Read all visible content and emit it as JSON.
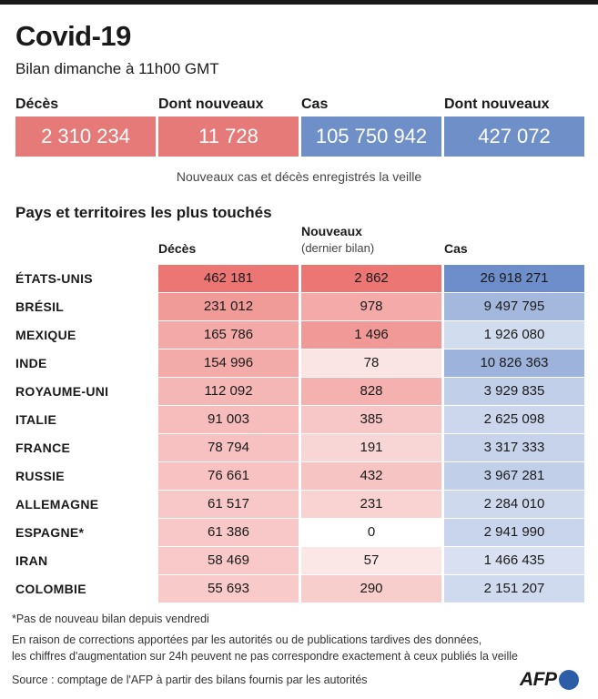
{
  "header": {
    "title": "Covid-19",
    "subtitle": "Bilan dimanche à 11h00 GMT"
  },
  "stats": [
    {
      "label": "Décès",
      "value": "2 310 234",
      "color": "#e67a78"
    },
    {
      "label": "Dont nouveaux",
      "value": "11 728",
      "color": "#e67a78"
    },
    {
      "label": "Cas",
      "value": "105 750 942",
      "color": "#6f8fc9"
    },
    {
      "label": "Dont nouveaux",
      "value": "427 072",
      "color": "#6f8fc9"
    }
  ],
  "stats_note": "Nouveaux cas et décès enregistrés la veille",
  "table_title": "Pays et territoires les plus touchés",
  "columns": {
    "deaths": "Décès",
    "new": "Nouveaux",
    "new_sub": "(dernier bilan)",
    "cases": "Cas"
  },
  "chart_data": {
    "type": "table",
    "title": "Pays et territoires les plus touchés",
    "columns": [
      "Décès",
      "Nouveaux (dernier bilan)",
      "Cas"
    ],
    "colors": {
      "red": "#ec7674",
      "blue": "#6d8dcb"
    },
    "rows": [
      {
        "country": "ÉTATS-UNIS",
        "deaths": 462181,
        "deaths_label": "462 181",
        "new": 2862,
        "new_label": "2 862",
        "cases": 26918271,
        "cases_label": "26 918 271"
      },
      {
        "country": "BRÉSIL",
        "deaths": 231012,
        "deaths_label": "231 012",
        "new": 978,
        "new_label": "978",
        "cases": 9497795,
        "cases_label": "9 497 795"
      },
      {
        "country": "MEXIQUE",
        "deaths": 165786,
        "deaths_label": "165 786",
        "new": 1496,
        "new_label": "1 496",
        "cases": 1926080,
        "cases_label": "1 926 080"
      },
      {
        "country": "INDE",
        "deaths": 154996,
        "deaths_label": "154 996",
        "new": 78,
        "new_label": "78",
        "cases": 10826363,
        "cases_label": "10 826 363"
      },
      {
        "country": "ROYAUME-UNI",
        "deaths": 112092,
        "deaths_label": "112 092",
        "new": 828,
        "new_label": "828",
        "cases": 3929835,
        "cases_label": "3 929 835"
      },
      {
        "country": "ITALIE",
        "deaths": 91003,
        "deaths_label": "91 003",
        "new": 385,
        "new_label": "385",
        "cases": 2625098,
        "cases_label": "2 625 098"
      },
      {
        "country": "FRANCE",
        "deaths": 78794,
        "deaths_label": "78 794",
        "new": 191,
        "new_label": "191",
        "cases": 3317333,
        "cases_label": "3 317 333"
      },
      {
        "country": "RUSSIE",
        "deaths": 76661,
        "deaths_label": "76 661",
        "new": 432,
        "new_label": "432",
        "cases": 3967281,
        "cases_label": "3 967 281"
      },
      {
        "country": "ALLEMAGNE",
        "deaths": 61517,
        "deaths_label": "61 517",
        "new": 231,
        "new_label": "231",
        "cases": 2284010,
        "cases_label": "2 284 010"
      },
      {
        "country": "ESPAGNE*",
        "deaths": 61386,
        "deaths_label": "61 386",
        "new": 0,
        "new_label": "0",
        "cases": 2941990,
        "cases_label": "2 941 990"
      },
      {
        "country": "IRAN",
        "deaths": 58469,
        "deaths_label": "58 469",
        "new": 57,
        "new_label": "57",
        "cases": 1466435,
        "cases_label": "1 466 435"
      },
      {
        "country": "COLOMBIE",
        "deaths": 55693,
        "deaths_label": "55 693",
        "new": 290,
        "new_label": "290",
        "cases": 2151207,
        "cases_label": "2 151 207"
      }
    ]
  },
  "footnotes": {
    "asterisk": "*Pas de nouveau bilan depuis vendredi",
    "corrections_line1": "En raison de corrections apportées par les autorités ou de publications tardives des données,",
    "corrections_line2": "les chiffres d'augmentation sur 24h peuvent ne pas correspondre exactement à ceux publiés la veille",
    "source": "Source : comptage de l'AFP à partir des bilans fournis par les autorités"
  },
  "logo": {
    "text": "AFP"
  }
}
